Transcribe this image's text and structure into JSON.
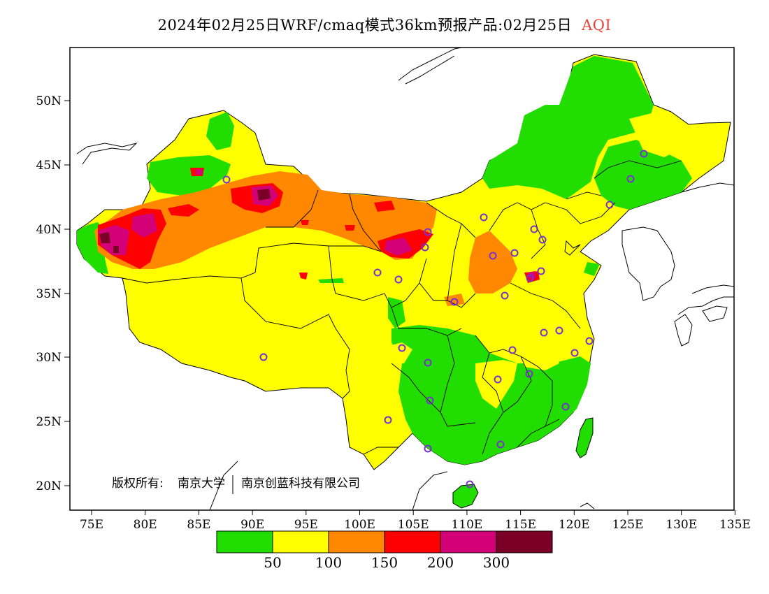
{
  "header": {
    "title": "2024年02月25日WRF/cmaq模式36km预报产品:02月25日",
    "variable": "AQI"
  },
  "copyright": {
    "owner_label": "版权所有:",
    "owner1": "南京大学",
    "owner2": "南京创蓝科技有限公司"
  },
  "axes": {
    "lat_labels": [
      "50N",
      "45N",
      "40N",
      "35N",
      "30N",
      "25N",
      "20N"
    ],
    "lon_labels": [
      "75E",
      "80E",
      "85E",
      "90E",
      "95E",
      "100E",
      "105E",
      "110E",
      "115E",
      "120E",
      "125E",
      "130E",
      "135E"
    ]
  },
  "legend": {
    "colors": [
      "#22dd00",
      "#ffff00",
      "#ff8800",
      "#ff0000",
      "#d40078",
      "#7a0028"
    ],
    "labels": [
      "50",
      "100",
      "150",
      "200",
      "300"
    ]
  },
  "colors": {
    "good": "#22dd00",
    "moderate": "#ffff00",
    "usg": "#ff8800",
    "unhealthy": "#ff0000",
    "very_unhealthy": "#d40078",
    "hazardous": "#7a0028",
    "station_ring": "#7733cc"
  }
}
